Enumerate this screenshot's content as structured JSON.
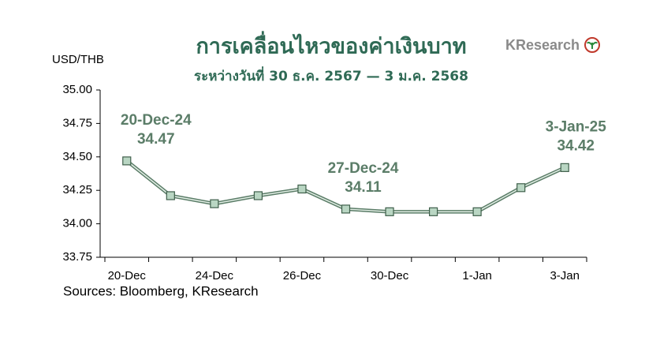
{
  "chart_data": {
    "type": "line",
    "title": "การเคลื่อนไหวของค่าเงินบาท",
    "subtitle": "ระหว่างวันที่ 30 ธ.ค. 2567 — 3 ม.ค. 2568",
    "logo": "KResearch",
    "y_label": "USD/THB",
    "source": "Sources: Bloomberg, KResearch",
    "categories": [
      "20-Dec",
      null,
      "24-Dec",
      null,
      "26-Dec",
      null,
      "30-Dec",
      null,
      "1-Jan",
      null,
      "3-Jan"
    ],
    "series": [
      {
        "name": "USD/THB",
        "color": "#5b7d68",
        "values": [
          34.47,
          34.21,
          34.15,
          34.21,
          34.26,
          34.11,
          34.09,
          34.09,
          34.09,
          34.27,
          34.42
        ],
        "point_labels": [
          "20-Dec-24",
          null,
          null,
          null,
          null,
          "27-Dec-24",
          null,
          null,
          null,
          null,
          "3-Jan-25"
        ]
      }
    ],
    "ylim": [
      33.75,
      35
    ],
    "yticks": [
      33.75,
      {
        "value": 34,
        "label": "34.00"
      },
      34.25,
      {
        "value": 34.5,
        "label": "34.50"
      },
      34.75,
      {
        "value": 35,
        "label": "35.00"
      }
    ]
  }
}
